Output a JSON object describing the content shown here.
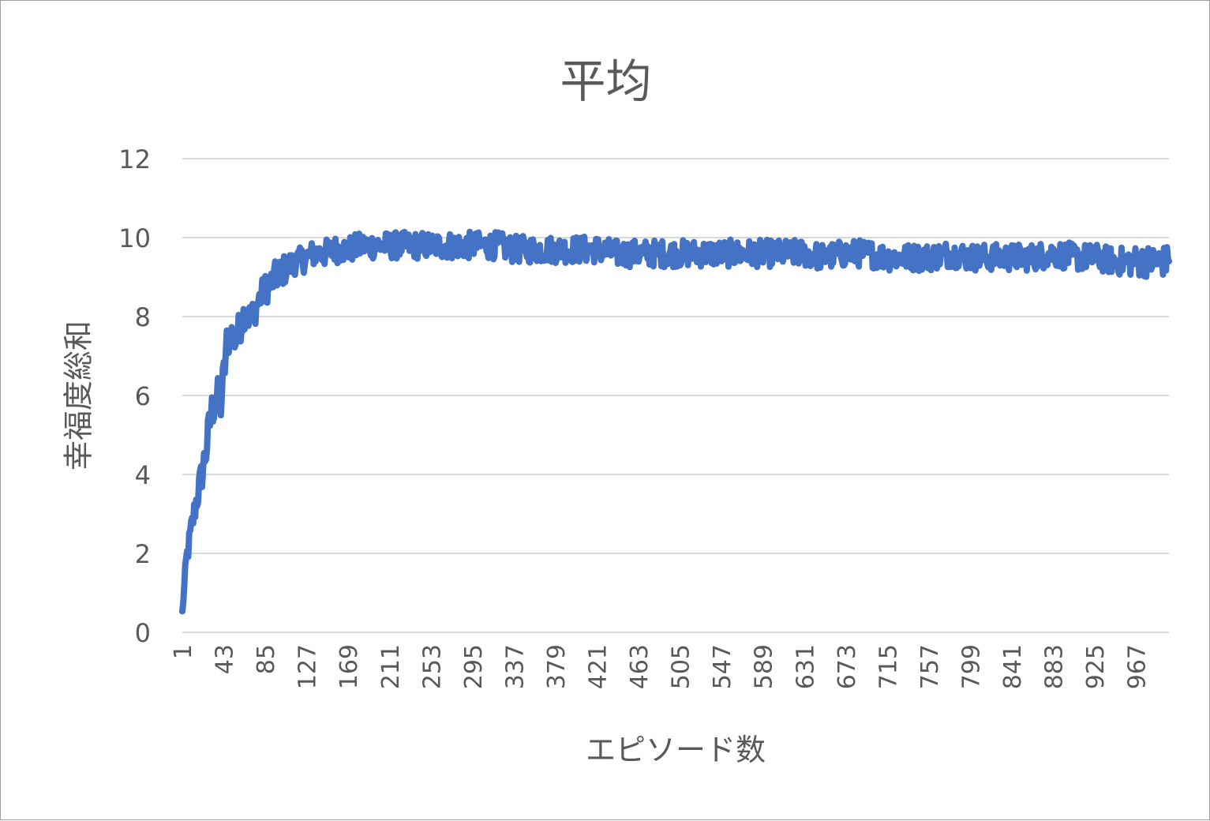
{
  "chart_data": {
    "type": "line",
    "title": "平均",
    "xlabel": "エピソード数",
    "ylabel": "幸福度総和",
    "ylim": [
      0,
      12
    ],
    "yticks": [
      "0",
      "2",
      "4",
      "6",
      "8",
      "10",
      "12"
    ],
    "xticks": [
      "1",
      "43",
      "85",
      "127",
      "169",
      "211",
      "253",
      "295",
      "337",
      "379",
      "421",
      "463",
      "505",
      "547",
      "589",
      "631",
      "673",
      "715",
      "757",
      "799",
      "841",
      "883",
      "925",
      "967"
    ],
    "x_range": [
      1,
      1000
    ],
    "grid": true,
    "legend": "none",
    "series": [
      {
        "color": "#4472c4",
        "x": [
          1,
          5,
          10,
          15,
          20,
          25,
          30,
          35,
          40,
          43,
          46,
          50,
          55,
          60,
          65,
          70,
          75,
          80,
          85,
          90,
          95,
          100,
          105,
          110,
          115,
          120,
          127,
          135,
          145,
          155,
          169,
          185,
          200,
          211,
          230,
          253,
          275,
          295,
          320,
          337,
          360,
          379,
          400,
          421,
          440,
          463,
          485,
          505,
          525,
          547,
          565,
          589,
          610,
          631,
          650,
          673,
          695,
          715,
          735,
          757,
          780,
          799,
          820,
          841,
          860,
          883,
          905,
          925,
          945,
          967,
          985,
          1000
        ],
        "values": [
          0.5,
          1.8,
          2.6,
          3.3,
          3.9,
          4.6,
          5.5,
          6.0,
          5.8,
          6.5,
          7.3,
          7.6,
          7.4,
          7.8,
          8.2,
          7.9,
          8.2,
          8.5,
          8.7,
          8.8,
          9.0,
          9.1,
          9.2,
          9.3,
          9.4,
          9.4,
          9.5,
          9.6,
          9.6,
          9.7,
          9.7,
          9.8,
          9.8,
          9.8,
          9.8,
          9.8,
          9.8,
          9.8,
          9.8,
          9.7,
          9.7,
          9.7,
          9.7,
          9.7,
          9.6,
          9.6,
          9.6,
          9.6,
          9.6,
          9.6,
          9.6,
          9.6,
          9.6,
          9.6,
          9.5,
          9.6,
          9.6,
          9.5,
          9.5,
          9.5,
          9.6,
          9.5,
          9.5,
          9.5,
          9.5,
          9.6,
          9.5,
          9.5,
          9.4,
          9.4,
          9.4,
          9.4
        ],
        "noise": [
          0.1,
          0.3,
          0.35,
          0.4,
          0.45,
          0.5,
          0.55,
          0.55,
          0.55,
          0.55,
          0.5,
          0.45,
          0.45,
          0.45,
          0.45,
          0.45,
          0.4,
          0.4,
          0.4,
          0.4,
          0.4,
          0.4,
          0.4,
          0.35,
          0.35,
          0.35,
          0.35,
          0.35,
          0.35,
          0.35,
          0.35,
          0.35,
          0.35,
          0.35,
          0.35,
          0.35,
          0.35,
          0.35,
          0.35,
          0.35,
          0.35,
          0.35,
          0.35,
          0.35,
          0.35,
          0.35,
          0.35,
          0.35,
          0.35,
          0.35,
          0.35,
          0.35,
          0.35,
          0.35,
          0.35,
          0.35,
          0.35,
          0.35,
          0.35,
          0.35,
          0.35,
          0.35,
          0.35,
          0.35,
          0.35,
          0.35,
          0.35,
          0.35,
          0.35,
          0.4,
          0.4,
          0.4
        ]
      }
    ]
  }
}
